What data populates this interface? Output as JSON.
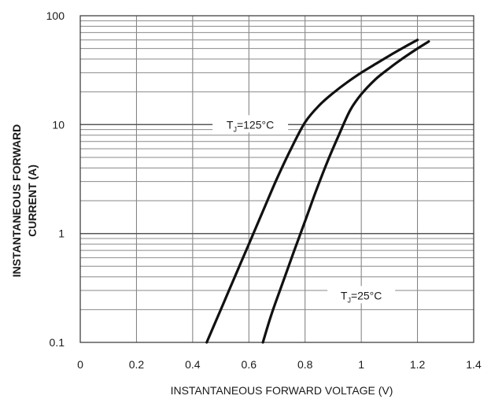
{
  "chart_data": {
    "type": "line",
    "title": "",
    "xlabel": "INSTANTANEOUS FORWARD VOLTAGE (V)",
    "ylabel_lines": [
      "INSTANTANEOUS FORWARD",
      "CURRENT (A)"
    ],
    "xlim": [
      0,
      1.4
    ],
    "ylim": [
      0.1,
      100
    ],
    "y_scale": "log",
    "grid": true,
    "x_ticks": [
      "0",
      "0.2",
      "0.4",
      "0.6",
      "0.8",
      "1",
      "1.2",
      "1.4"
    ],
    "y_ticks": [
      "0.1",
      "1",
      "10",
      "100"
    ],
    "line_color": "#111111",
    "series": [
      {
        "annotation": {
          "main": "T",
          "sub": "J",
          "rest": "=125°C"
        },
        "x": [
          0.45,
          0.5,
          0.55,
          0.6,
          0.65,
          0.7,
          0.75,
          0.8,
          0.85,
          0.9,
          0.95,
          1.0,
          1.05,
          1.1,
          1.15,
          1.2
        ],
        "y": [
          0.1,
          0.2,
          0.4,
          0.8,
          1.6,
          3.2,
          6.0,
          10.5,
          15.0,
          19.5,
          24.5,
          30.0,
          36.0,
          43.0,
          51.0,
          60.0
        ]
      },
      {
        "annotation": {
          "main": "T",
          "sub": "J",
          "rest": "=25°C"
        },
        "x": [
          0.65,
          0.68,
          0.72,
          0.76,
          0.8,
          0.84,
          0.88,
          0.92,
          0.96,
          1.0,
          1.05,
          1.1,
          1.15,
          1.2,
          1.24
        ],
        "y": [
          0.1,
          0.18,
          0.35,
          0.68,
          1.3,
          2.5,
          4.6,
          8.0,
          13.5,
          19.0,
          26.0,
          33.0,
          41.0,
          50.0,
          58.0
        ]
      }
    ]
  }
}
